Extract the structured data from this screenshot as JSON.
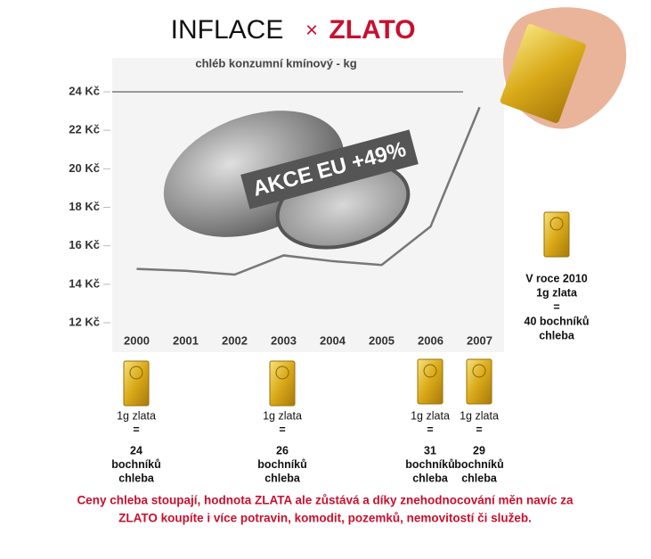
{
  "chart_data": {
    "type": "line",
    "title": "INFLACE",
    "title_symbol": "×",
    "title_gold": "ZLATO",
    "subtitle": "chléb konzumní kmínový - kg",
    "annotation": "AKCE EU +49%",
    "categories": [
      "2000",
      "2001",
      "2002",
      "2003",
      "2004",
      "2005",
      "2006",
      "2007"
    ],
    "series": [
      {
        "color": "#777777",
        "values": [
          14.8,
          14.7,
          14.5,
          15.5,
          15.2,
          15.0,
          17.0,
          23.2
        ]
      }
    ],
    "ylim": [
      12,
      24
    ],
    "yticks": [
      {
        "value": 12,
        "label": "12 Kč"
      },
      {
        "value": 14,
        "label": "14 Kč"
      },
      {
        "value": 16,
        "label": "16 Kč"
      },
      {
        "value": 18,
        "label": "18 Kč"
      },
      {
        "value": 20,
        "label": "20 Kč"
      },
      {
        "value": 22,
        "label": "22 Kč"
      },
      {
        "value": 24,
        "label": "24 Kč"
      }
    ],
    "gold_captions": [
      {
        "lines": [
          "1g zlata",
          "=",
          "24",
          "bochníků",
          "chleba"
        ]
      },
      {
        "lines": [
          "1g zlata",
          "=",
          "26",
          "bochníků",
          "chleba"
        ]
      },
      {
        "lines": [
          "1g zlata",
          "=",
          "31",
          "bochníků",
          "chleba"
        ]
      },
      {
        "lines": [
          "1g zlata",
          "=",
          "29",
          "bochníků",
          "chleba"
        ]
      },
      {
        "lines": [
          "V roce 2010",
          "1g zlata",
          "=",
          "40 bochníků",
          "chleba"
        ]
      }
    ],
    "footer": [
      "Ceny chleba stoupají, hodnota ZLATA ale zůstává a díky znehodnocování měn navíc za",
      "ZLATO koupíte i více potravin, komodit, pozemků, nemovitostí či služeb."
    ]
  }
}
